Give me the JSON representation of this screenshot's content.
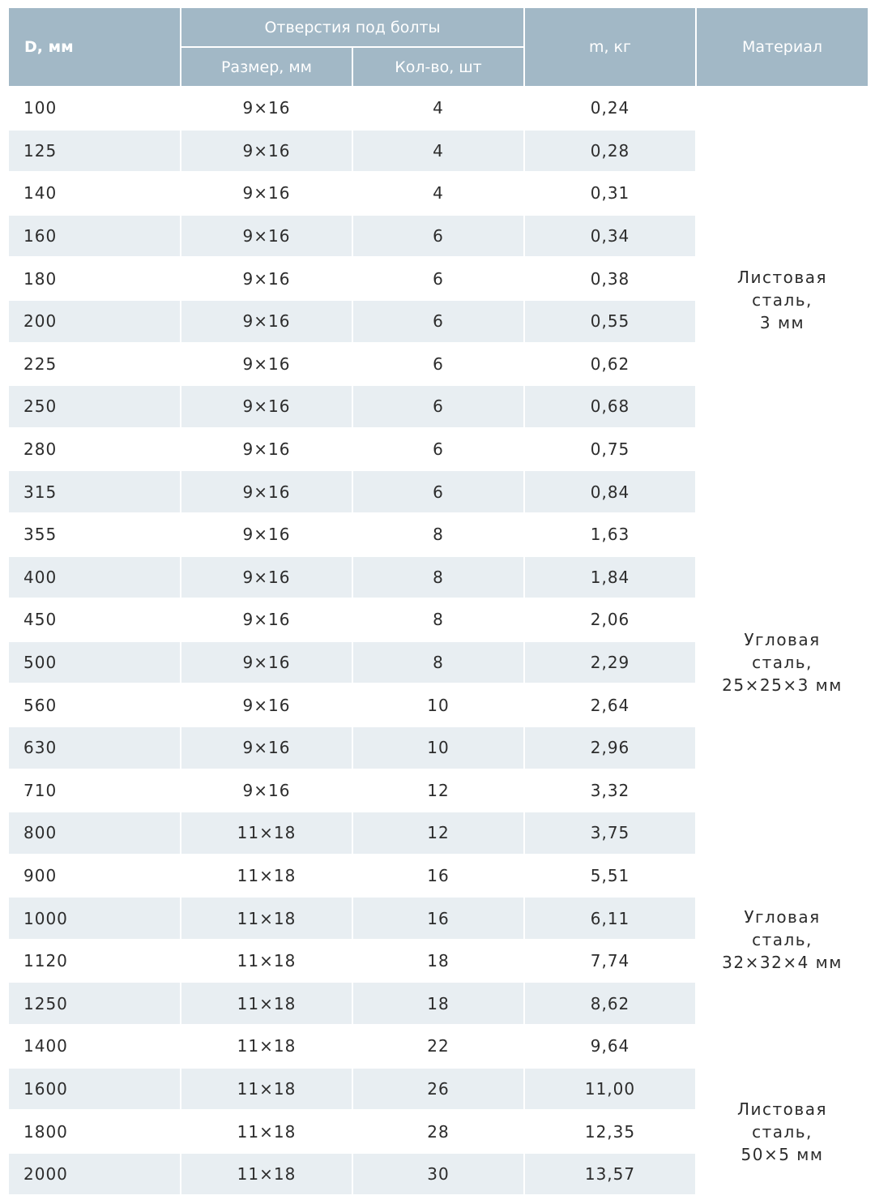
{
  "header": {
    "d": "D, мм",
    "holes": "Отверстия под болты",
    "size": "Размер, мм",
    "count": "Кол-во, шт",
    "mass": "m, кг",
    "material": "Материал"
  },
  "rows": [
    {
      "d": "100",
      "size": "9×16",
      "count": "4",
      "mass": "0,24"
    },
    {
      "d": "125",
      "size": "9×16",
      "count": "4",
      "mass": "0,28"
    },
    {
      "d": "140",
      "size": "9×16",
      "count": "4",
      "mass": "0,31"
    },
    {
      "d": "160",
      "size": "9×16",
      "count": "6",
      "mass": "0,34"
    },
    {
      "d": "180",
      "size": "9×16",
      "count": "6",
      "mass": "0,38"
    },
    {
      "d": "200",
      "size": "9×16",
      "count": "6",
      "mass": "0,55"
    },
    {
      "d": "225",
      "size": "9×16",
      "count": "6",
      "mass": "0,62"
    },
    {
      "d": "250",
      "size": "9×16",
      "count": "6",
      "mass": "0,68"
    },
    {
      "d": "280",
      "size": "9×16",
      "count": "6",
      "mass": "0,75"
    },
    {
      "d": "315",
      "size": "9×16",
      "count": "6",
      "mass": "0,84"
    },
    {
      "d": "355",
      "size": "9×16",
      "count": "8",
      "mass": "1,63"
    },
    {
      "d": "400",
      "size": "9×16",
      "count": "8",
      "mass": "1,84"
    },
    {
      "d": "450",
      "size": "9×16",
      "count": "8",
      "mass": "2,06"
    },
    {
      "d": "500",
      "size": "9×16",
      "count": "8",
      "mass": "2,29"
    },
    {
      "d": "560",
      "size": "9×16",
      "count": "10",
      "mass": "2,64"
    },
    {
      "d": "630",
      "size": "9×16",
      "count": "10",
      "mass": "2,96"
    },
    {
      "d": "710",
      "size": "9×16",
      "count": "12",
      "mass": "3,32"
    },
    {
      "d": "800",
      "size": "11×18",
      "count": "12",
      "mass": "3,75"
    },
    {
      "d": "900",
      "size": "11×18",
      "count": "16",
      "mass": "5,51"
    },
    {
      "d": "1000",
      "size": "11×18",
      "count": "16",
      "mass": "6,11"
    },
    {
      "d": "1120",
      "size": "11×18",
      "count": "18",
      "mass": "7,74"
    },
    {
      "d": "1250",
      "size": "11×18",
      "count": "18",
      "mass": "8,62"
    },
    {
      "d": "1400",
      "size": "11×18",
      "count": "22",
      "mass": "9,64"
    },
    {
      "d": "1600",
      "size": "11×18",
      "count": "26",
      "mass": "11,00"
    },
    {
      "d": "1800",
      "size": "11×18",
      "count": "28",
      "mass": "12,35"
    },
    {
      "d": "2000",
      "size": "11×18",
      "count": "30",
      "mass": "13,57"
    }
  ],
  "materials": [
    {
      "lines": [
        "Листовая",
        "сталь,",
        "3 мм"
      ],
      "rows": 10
    },
    {
      "lines": [
        "Угловая",
        "сталь,",
        "25×25×3 мм"
      ],
      "rows": 7
    },
    {
      "lines": [
        "Угловая",
        "сталь,",
        "32×32×4 мм"
      ],
      "rows": 6
    },
    {
      "lines": [
        "Листовая",
        "сталь,",
        "50×5 мм"
      ],
      "rows": 3
    }
  ]
}
